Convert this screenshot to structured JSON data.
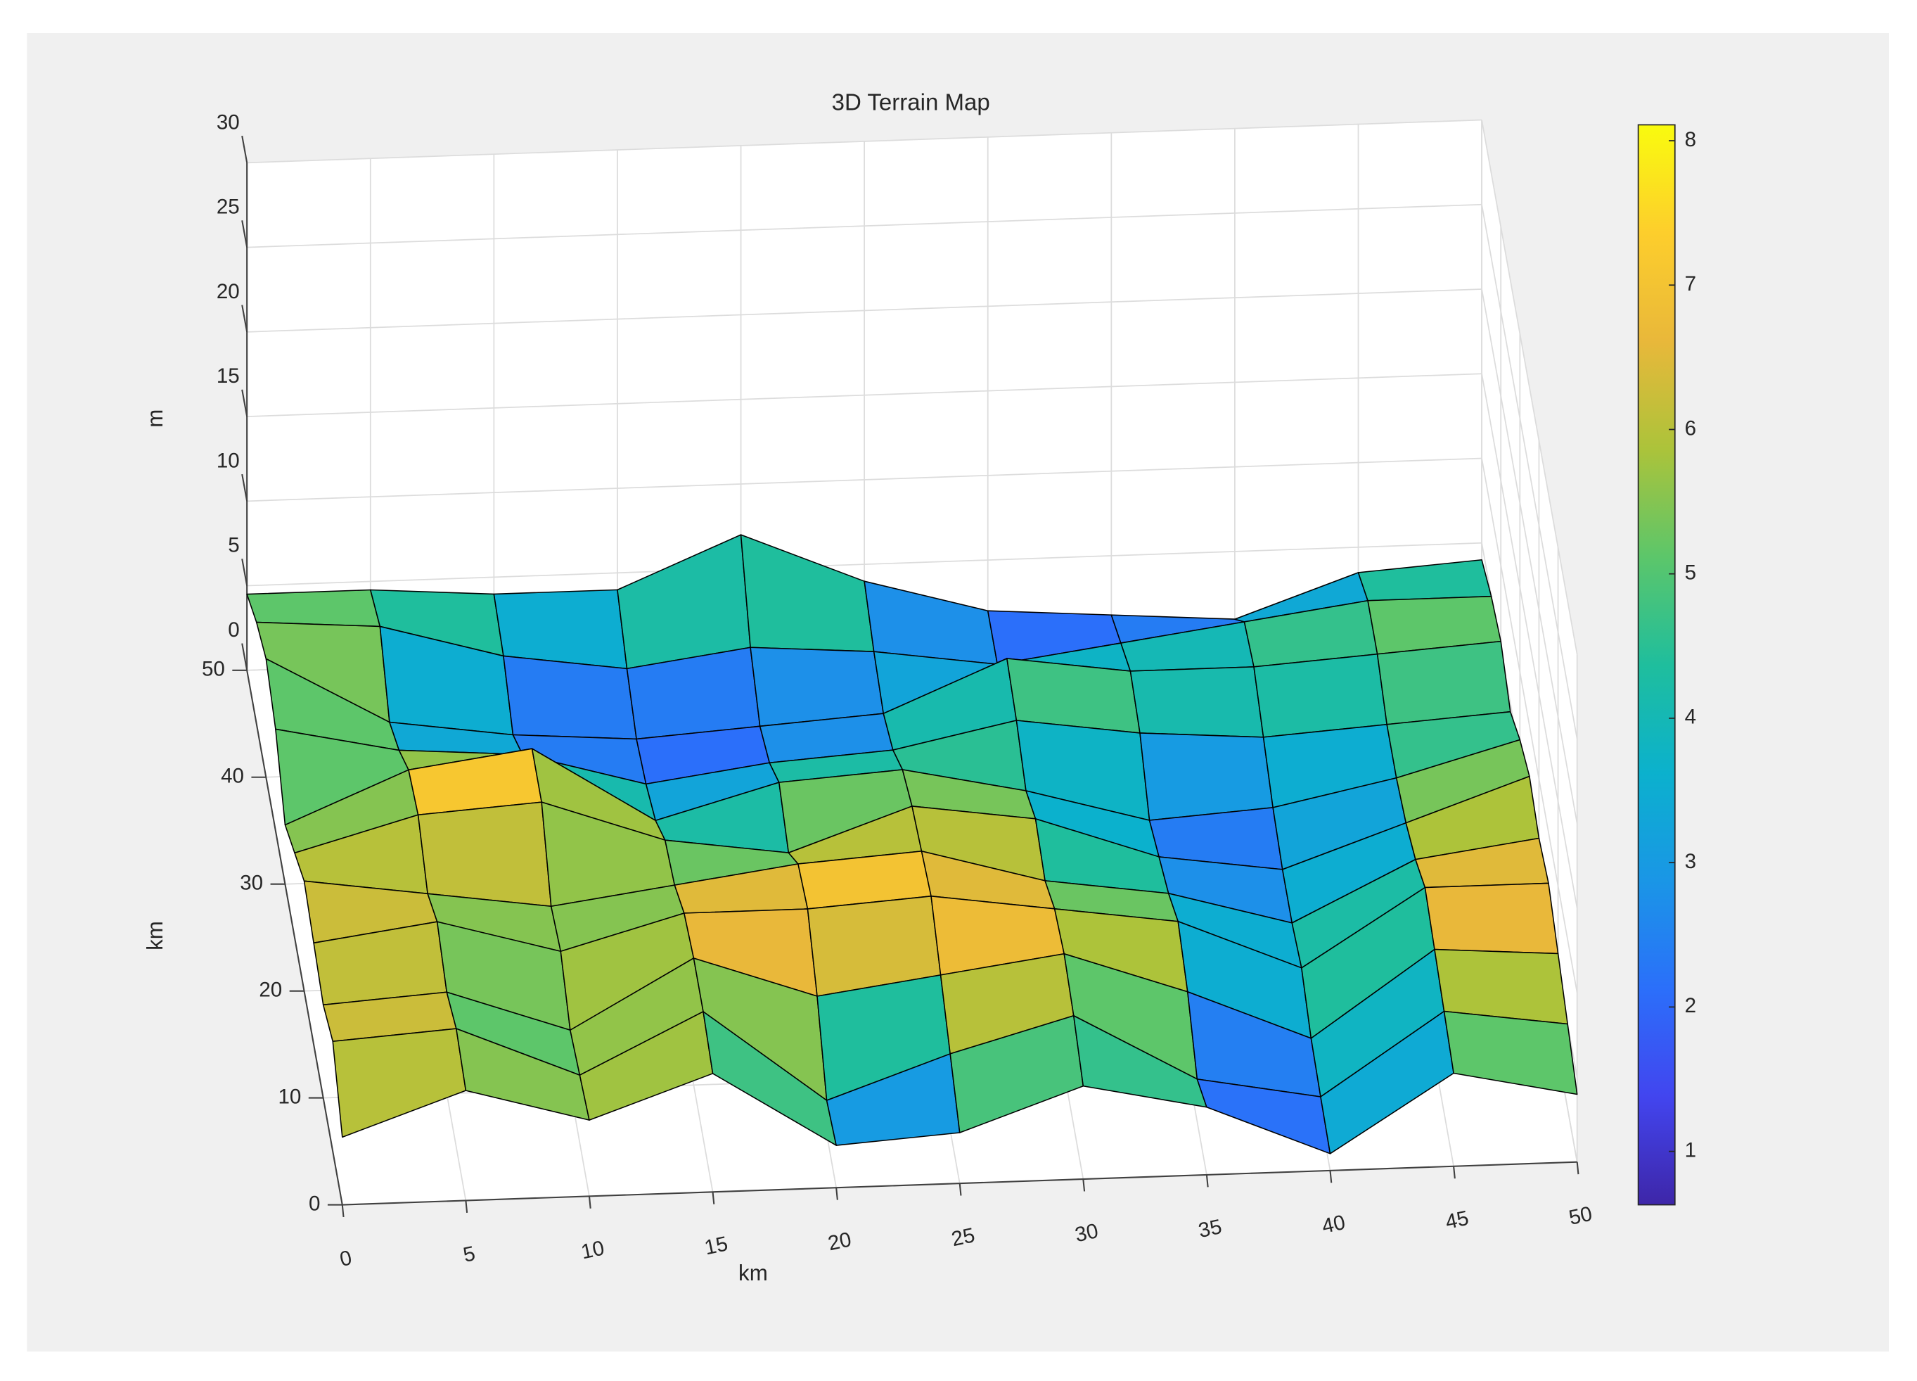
{
  "chart_data": {
    "type": "surface",
    "title": "3D Terrain Map",
    "x_label": "km",
    "y_label": "km",
    "z_label": "m",
    "x": [
      0,
      5,
      10,
      15,
      20,
      25,
      30,
      35,
      40,
      45,
      50
    ],
    "y": [
      0,
      5,
      10,
      15,
      20,
      25,
      30,
      35,
      40,
      45,
      50
    ],
    "z": [
      [
        4.0,
        6.5,
        4.5,
        7.0,
        2.5,
        3.0,
        5.5,
        4.0,
        1.0,
        5.5,
        4.0
      ],
      [
        6.5,
        7.0,
        4.0,
        7.5,
        2.0,
        4.5,
        6.5,
        2.5,
        1.2,
        6.0,
        5.0
      ],
      [
        5.5,
        6.0,
        3.5,
        7.5,
        5.0,
        6.0,
        7.0,
        4.5,
        1.5,
        6.5,
        6.0
      ],
      [
        6.0,
        7.0,
        5.0,
        7.0,
        7.0,
        7.5,
        6.5,
        5.5,
        2.5,
        7.0,
        7.0
      ],
      [
        6.5,
        5.5,
        4.5,
        5.5,
        6.5,
        7.0,
        5.0,
        4.0,
        2.0,
        5.5,
        6.5
      ],
      [
        5.0,
        7.0,
        7.5,
        5.0,
        4.0,
        6.5,
        5.5,
        3.0,
        2.0,
        4.5,
        7.0
      ],
      [
        3.5,
        6.5,
        7.5,
        3.0,
        5.0,
        5.5,
        4.0,
        2.0,
        2.5,
        4.0,
        6.0
      ],
      [
        6.0,
        4.5,
        4.0,
        2.0,
        3.0,
        3.5,
        5.0,
        4.0,
        3.5,
        4.0,
        4.5
      ],
      [
        7.0,
        3.0,
        2.0,
        1.5,
        2.0,
        2.5,
        5.5,
        4.5,
        4.5,
        5.0,
        5.5
      ],
      [
        6.0,
        5.5,
        3.5,
        2.5,
        3.5,
        3.0,
        2.0,
        3.0,
        4.0,
        5.0,
        5.0
      ],
      [
        4.5,
        4.5,
        4.0,
        4.0,
        7.0,
        4.0,
        2.0,
        1.5,
        1.0,
        3.5,
        4.0
      ]
    ],
    "xlim": [
      0,
      50
    ],
    "xticks": [
      0,
      5,
      10,
      15,
      20,
      25,
      30,
      35,
      40,
      45,
      50
    ],
    "ylim": [
      0,
      50
    ],
    "yticks": [
      0,
      10,
      20,
      30,
      40,
      50
    ],
    "zlim": [
      0,
      30
    ],
    "zticks": [
      0,
      5,
      10,
      15,
      20,
      25,
      30
    ],
    "clim": [
      0.63,
      8.11
    ],
    "cticks": [
      1,
      2,
      3,
      4,
      5,
      6,
      7,
      8
    ],
    "colormap": [
      "#3e26a8",
      "#4245ef",
      "#2b6ffa",
      "#1a96e6",
      "#0bb1cd",
      "#1fbe9d",
      "#5cc66a",
      "#acc33a",
      "#e9b83a",
      "#fdce2c",
      "#f9fb0e"
    ],
    "grid": true,
    "edge_color": "#000000"
  }
}
